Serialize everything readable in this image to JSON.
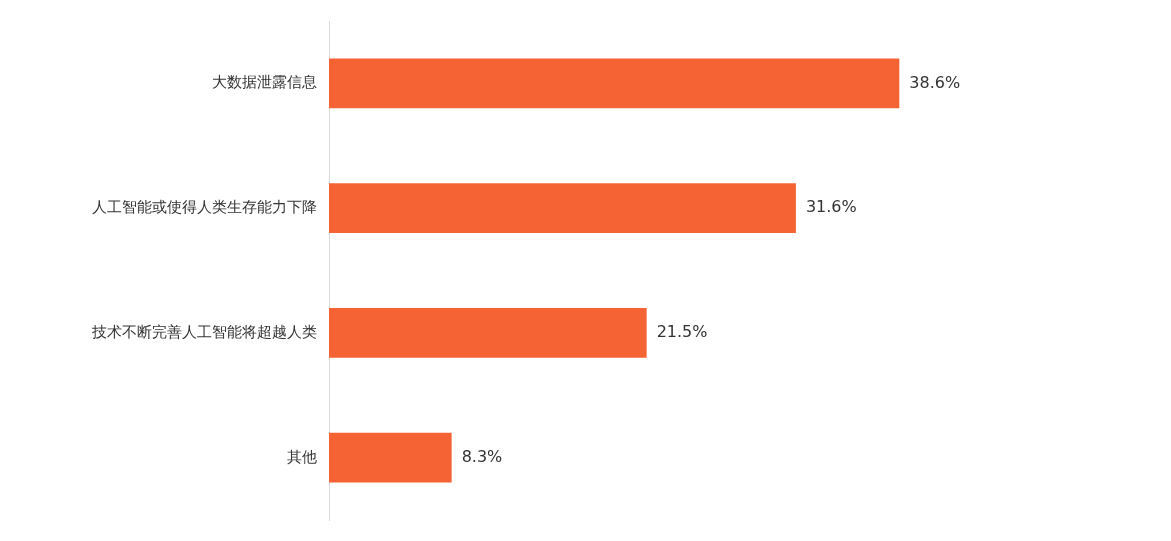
{
  "chart_data": {
    "type": "bar",
    "orientation": "horizontal",
    "categories": [
      "大数据泄露信息",
      "人工智能或使得人类生存能力下降",
      "技术不断完善人工智能将超越人类",
      "其他"
    ],
    "values": [
      38.6,
      31.6,
      21.5,
      8.3
    ],
    "color": "#f56335",
    "data_labels": true,
    "value_labels": [
      "38.6%",
      "31.6%",
      "21.5%",
      "8.3%"
    ],
    "legend": false,
    "tick_labels": "y"
  }
}
